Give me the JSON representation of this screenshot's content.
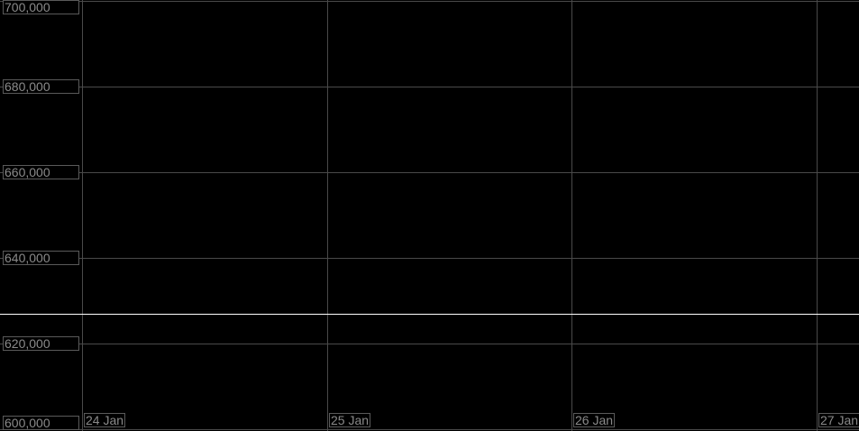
{
  "chart_data": {
    "type": "line",
    "title": "",
    "xlabel": "",
    "ylabel": "",
    "ylim": [
      600000,
      700000
    ],
    "yticks": [
      700000,
      680000,
      660000,
      640000,
      620000,
      600000
    ],
    "ytick_labels": [
      "700,000",
      "680,000",
      "660,000",
      "640,000",
      "620,000",
      "600,000"
    ],
    "xticks": [
      "24 Jan",
      "25 Jan",
      "26 Jan",
      "27 Jan"
    ],
    "grid": true,
    "series": [
      {
        "x": [
          "24 Jan",
          "27 Jan"
        ],
        "values": [
          627000,
          627000
        ],
        "color": "#ffffff"
      }
    ],
    "colors": {
      "background": "#000000",
      "grid": "#4a4a4a",
      "label_text": "#8a8a8a",
      "line": "#ffffff"
    }
  }
}
